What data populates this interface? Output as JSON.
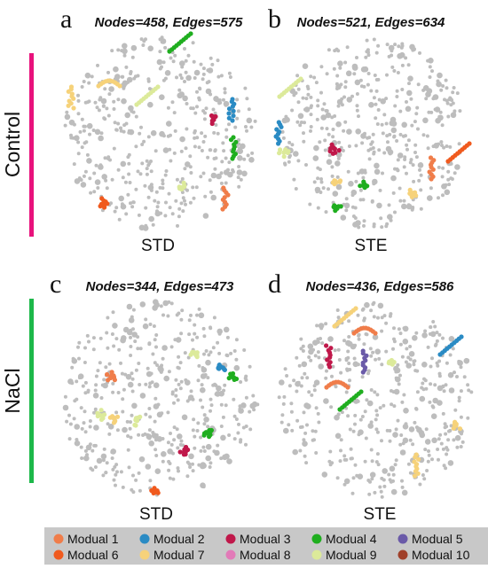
{
  "groups": [
    {
      "label": "Control",
      "color": "#e8127c"
    },
    {
      "label": "NaCl",
      "color": "#1db84a"
    }
  ],
  "panels": [
    {
      "letter": "a",
      "stats": "Nodes=458, Edges=575",
      "caption": "STD"
    },
    {
      "letter": "b",
      "stats": "Nodes=521, Edges=634",
      "caption": "STE"
    },
    {
      "letter": "c",
      "stats": "Nodes=344, Edges=473",
      "caption": "STD"
    },
    {
      "letter": "d",
      "stats": "Nodes=436, Edges=586",
      "caption": "STE"
    }
  ],
  "legend": {
    "background": "#c8c8c8",
    "node_color": "#bdbdbd",
    "items": [
      {
        "label": "Modual 1",
        "color": "#f07d4a"
      },
      {
        "label": "Modual 2",
        "color": "#2a8bc4"
      },
      {
        "label": "Modual 3",
        "color": "#c0184a"
      },
      {
        "label": "Modual 4",
        "color": "#1fae1f"
      },
      {
        "label": "Modual 5",
        "color": "#6a5aa8"
      },
      {
        "label": "Modual 6",
        "color": "#f05a1e"
      },
      {
        "label": "Modual 7",
        "color": "#f6d27a"
      },
      {
        "label": "Modual 8",
        "color": "#e27ab8"
      },
      {
        "label": "Modual 9",
        "color": "#dcea9a"
      },
      {
        "label": "Modual 10",
        "color": "#a0402a"
      }
    ]
  }
}
